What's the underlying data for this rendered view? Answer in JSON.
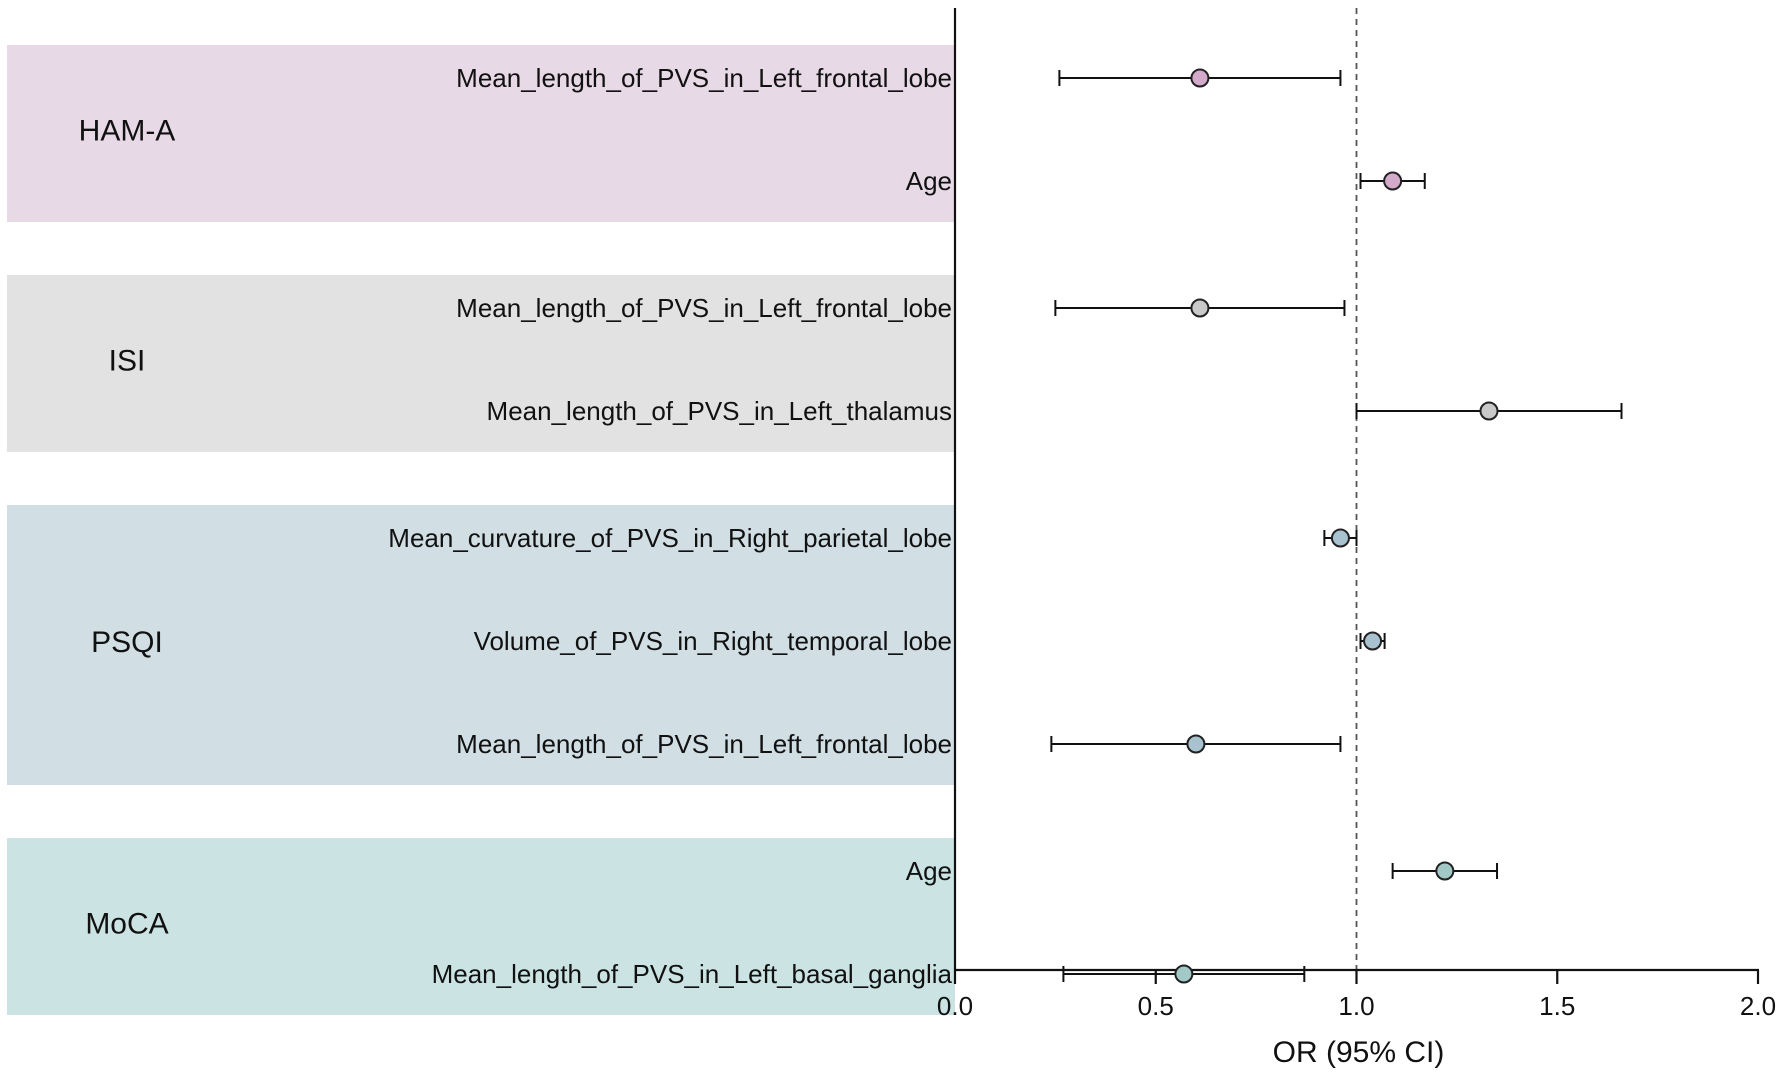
{
  "chart_data": {
    "type": "forest",
    "xlabel": "OR (95% CI)",
    "xlim": [
      0.0,
      2.0
    ],
    "xticks": [
      "0.0",
      "0.5",
      "1.0",
      "1.5",
      "2.0"
    ],
    "reference_line": 1.0,
    "groups": [
      {
        "name": "HAM-A",
        "color": "#e8d9e6",
        "point_color": "#d4aacb",
        "rows": [
          {
            "label": "Mean_length_of_PVS_in_Left_frontal_lobe",
            "or": 0.61,
            "lower": 0.26,
            "upper": 0.96
          },
          {
            "label": "Age",
            "or": 1.09,
            "lower": 1.01,
            "upper": 1.17
          }
        ]
      },
      {
        "name": "ISI",
        "color": "#e2e2e2",
        "point_color": "#c9c9c9",
        "rows": [
          {
            "label": "Mean_length_of_PVS_in_Left_frontal_lobe",
            "or": 0.61,
            "lower": 0.25,
            "upper": 0.97
          },
          {
            "label": "Mean_length_of_PVS_in_Left_thalamus",
            "or": 1.33,
            "lower": 1.0,
            "upper": 1.66
          }
        ]
      },
      {
        "name": "PSQI",
        "color": "#d1dfe5",
        "point_color": "#a9c2cf",
        "rows": [
          {
            "label": "Mean_curvature_of_PVS_in_Right_parietal_lobe",
            "or": 0.96,
            "lower": 0.92,
            "upper": 1.0
          },
          {
            "label": "Volume_of_PVS_in_Right_temporal_lobe",
            "or": 1.04,
            "lower": 1.01,
            "upper": 1.07
          },
          {
            "label": "Mean_length_of_PVS_in_Left_frontal_lobe",
            "or": 0.6,
            "lower": 0.24,
            "upper": 0.96
          }
        ]
      },
      {
        "name": "MoCA",
        "color": "#cbe3e3",
        "point_color": "#a3c9c7",
        "rows": [
          {
            "label": "Age",
            "or": 1.22,
            "lower": 1.09,
            "upper": 1.35
          },
          {
            "label": "Mean_length_of_PVS_in_Left_basal_ganglia",
            "or": 0.57,
            "lower": 0.27,
            "upper": 0.87
          }
        ]
      }
    ]
  }
}
